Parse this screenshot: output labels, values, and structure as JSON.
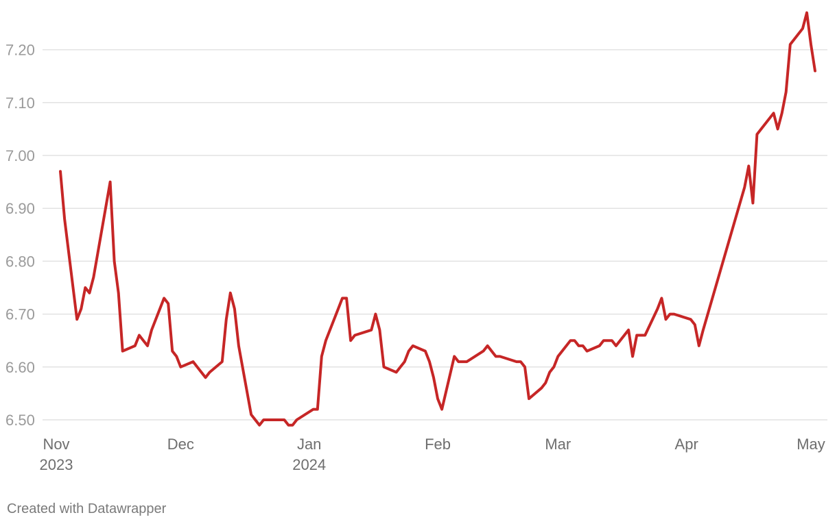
{
  "footer": {
    "credit": "Created with Datawrapper"
  },
  "chart_data": {
    "type": "line",
    "title": "",
    "xlabel": "",
    "ylabel": "",
    "grid": true,
    "colors": {
      "series": "#c62626",
      "grid": "#e2e2e2"
    },
    "xlim": [
      "2023-11-01",
      "2024-05-01"
    ],
    "ylim": [
      6.5,
      7.25
    ],
    "yticks": [
      "6.50",
      "6.60",
      "6.70",
      "6.80",
      "6.90",
      "7.00",
      "7.10",
      "7.20"
    ],
    "xticks": [
      {
        "date": "2023-11-01",
        "label": "Nov",
        "sublabel": "2023"
      },
      {
        "date": "2023-12-01",
        "label": "Dec",
        "sublabel": ""
      },
      {
        "date": "2024-01-01",
        "label": "Jan",
        "sublabel": "2024"
      },
      {
        "date": "2024-02-01",
        "label": "Feb",
        "sublabel": ""
      },
      {
        "date": "2024-03-01",
        "label": "Mar",
        "sublabel": ""
      },
      {
        "date": "2024-04-01",
        "label": "Apr",
        "sublabel": ""
      },
      {
        "date": "2024-05-01",
        "label": "May",
        "sublabel": ""
      }
    ],
    "series": [
      {
        "x": [
          "2023-11-02",
          "2023-11-03",
          "2023-11-06",
          "2023-11-07",
          "2023-11-08",
          "2023-11-09",
          "2023-11-10",
          "2023-11-14",
          "2023-11-15",
          "2023-11-16",
          "2023-11-17",
          "2023-11-20",
          "2023-11-21",
          "2023-11-22",
          "2023-11-23",
          "2023-11-24",
          "2023-11-27",
          "2023-11-28",
          "2023-11-29",
          "2023-11-30",
          "2023-12-01",
          "2023-12-04",
          "2023-12-05",
          "2023-12-06",
          "2023-12-07",
          "2023-12-08",
          "2023-12-11",
          "2023-12-12",
          "2023-12-13",
          "2023-12-14",
          "2023-12-15",
          "2023-12-18",
          "2023-12-19",
          "2023-12-20",
          "2023-12-21",
          "2023-12-22",
          "2023-12-26",
          "2023-12-27",
          "2023-12-28",
          "2023-12-29",
          "2024-01-02",
          "2024-01-03",
          "2024-01-04",
          "2024-01-05",
          "2024-01-08",
          "2024-01-09",
          "2024-01-10",
          "2024-01-11",
          "2024-01-12",
          "2024-01-16",
          "2024-01-17",
          "2024-01-18",
          "2024-01-19",
          "2024-01-22",
          "2024-01-23",
          "2024-01-24",
          "2024-01-25",
          "2024-01-26",
          "2024-01-29",
          "2024-01-30",
          "2024-01-31",
          "2024-02-01",
          "2024-02-02",
          "2024-02-05",
          "2024-02-06",
          "2024-02-07",
          "2024-02-08",
          "2024-02-12",
          "2024-02-13",
          "2024-02-14",
          "2024-02-15",
          "2024-02-16",
          "2024-02-20",
          "2024-02-21",
          "2024-02-22",
          "2024-02-23",
          "2024-02-26",
          "2024-02-27",
          "2024-02-28",
          "2024-02-29",
          "2024-03-01",
          "2024-03-04",
          "2024-03-05",
          "2024-03-06",
          "2024-03-07",
          "2024-03-08",
          "2024-03-11",
          "2024-03-12",
          "2024-03-13",
          "2024-03-14",
          "2024-03-15",
          "2024-03-18",
          "2024-03-19",
          "2024-03-20",
          "2024-03-21",
          "2024-03-22",
          "2024-03-25",
          "2024-03-26",
          "2024-03-27",
          "2024-03-28",
          "2024-03-29",
          "2024-04-02",
          "2024-04-03",
          "2024-04-04",
          "2024-04-05",
          "2024-04-15",
          "2024-04-16",
          "2024-04-17",
          "2024-04-18",
          "2024-04-22",
          "2024-04-23",
          "2024-04-24",
          "2024-04-25",
          "2024-04-26",
          "2024-04-29",
          "2024-04-30",
          "2024-05-01",
          "2024-05-02"
        ],
        "y": [
          6.97,
          6.88,
          6.69,
          6.71,
          6.75,
          6.74,
          6.77,
          6.95,
          6.8,
          6.74,
          6.63,
          6.64,
          6.66,
          6.65,
          6.64,
          6.67,
          6.73,
          6.72,
          6.63,
          6.62,
          6.6,
          6.61,
          6.6,
          6.59,
          6.58,
          6.59,
          6.61,
          6.69,
          6.74,
          6.71,
          6.64,
          6.51,
          6.5,
          6.49,
          6.5,
          6.5,
          6.5,
          6.49,
          6.49,
          6.5,
          6.52,
          6.52,
          6.62,
          6.65,
          6.71,
          6.73,
          6.73,
          6.65,
          6.66,
          6.67,
          6.7,
          6.67,
          6.6,
          6.59,
          6.6,
          6.61,
          6.63,
          6.64,
          6.63,
          6.61,
          6.58,
          6.54,
          6.52,
          6.62,
          6.61,
          6.61,
          6.61,
          6.63,
          6.64,
          6.63,
          6.62,
          6.62,
          6.61,
          6.61,
          6.6,
          6.54,
          6.56,
          6.57,
          6.59,
          6.6,
          6.62,
          6.65,
          6.65,
          6.64,
          6.64,
          6.63,
          6.64,
          6.65,
          6.65,
          6.65,
          6.64,
          6.67,
          6.62,
          6.66,
          6.66,
          6.66,
          6.71,
          6.73,
          6.69,
          6.7,
          6.7,
          6.69,
          6.68,
          6.64,
          6.67,
          6.94,
          6.98,
          6.91,
          7.04,
          7.08,
          7.05,
          7.08,
          7.12,
          7.21,
          7.24,
          7.27,
          7.21,
          7.16
        ]
      }
    ]
  }
}
